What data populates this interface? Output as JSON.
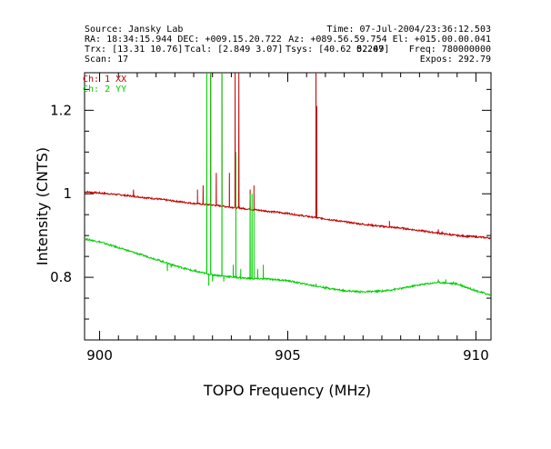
{
  "header": {
    "source": "Source: Jansky Lab",
    "time": "Time: 07-Jul-2004/23:36:12.503",
    "radec": "RA: 18:34:15.944 DEC: +009.15.20.722",
    "azel": "Az: +089.56.59.754 El: +015.00.00.041",
    "trx": "Trx: [13.31 10.76]",
    "tcal": "Tcal: [2.849 3.07]",
    "tsys": "Tsys: [40.62 52.49]",
    "freq": "Freq: 780000000",
    "scan": "Scan: 17",
    "expos": "Expos: 292.79",
    "overlap": "0.207"
  },
  "chart_data": {
    "type": "line",
    "title": "",
    "xlabel": "TOPO Frequency (MHz)",
    "ylabel": "Intensity (CNTS)",
    "xlim": [
      899.6,
      910.4
    ],
    "ylim": [
      0.65,
      1.29
    ],
    "xticks": [
      900,
      905,
      910
    ],
    "xtick_labels": [
      "900",
      "905",
      "910"
    ],
    "yticks": [
      0.8,
      1.0,
      1.2
    ],
    "ytick_labels": [
      "0.8",
      "1",
      "1.2"
    ],
    "legend_position": "top-left inside",
    "series": [
      {
        "name": "Ch: 1 XX",
        "color": "#c00000",
        "baseline": [
          [
            899.6,
            1.005
          ],
          [
            900.5,
            0.998
          ],
          [
            901.5,
            0.988
          ],
          [
            902.5,
            0.977
          ],
          [
            903.0,
            0.973
          ],
          [
            903.5,
            0.968
          ],
          [
            904.0,
            0.963
          ],
          [
            904.5,
            0.958
          ],
          [
            905.0,
            0.953
          ],
          [
            905.5,
            0.946
          ],
          [
            906.0,
            0.94
          ],
          [
            906.5,
            0.933
          ],
          [
            907.0,
            0.927
          ],
          [
            907.5,
            0.922
          ],
          [
            908.0,
            0.918
          ],
          [
            908.5,
            0.912
          ],
          [
            909.0,
            0.906
          ],
          [
            909.5,
            0.9
          ],
          [
            910.0,
            0.897
          ],
          [
            910.4,
            0.894
          ]
        ],
        "spikes": [
          [
            900.9,
            1.01
          ],
          [
            902.6,
            1.01
          ],
          [
            902.75,
            1.02
          ],
          [
            902.95,
            1.29
          ],
          [
            903.1,
            1.05
          ],
          [
            903.25,
            1.29
          ],
          [
            903.45,
            1.05
          ],
          [
            903.6,
            1.29
          ],
          [
            903.7,
            1.29
          ],
          [
            904.0,
            1.01
          ],
          [
            904.1,
            1.02
          ],
          [
            905.75,
            1.29
          ],
          [
            905.77,
            1.21
          ],
          [
            907.7,
            0.935
          ],
          [
            909.0,
            0.915
          ],
          [
            909.1,
            0.91
          ],
          [
            909.3,
            0.905
          ],
          [
            909.6,
            0.9
          ]
        ]
      },
      {
        "name": "Ch: 2 YY",
        "color": "#00cc00",
        "baseline": [
          [
            899.6,
            0.892
          ],
          [
            900.0,
            0.885
          ],
          [
            900.5,
            0.871
          ],
          [
            901.0,
            0.857
          ],
          [
            901.5,
            0.843
          ],
          [
            902.0,
            0.828
          ],
          [
            902.5,
            0.815
          ],
          [
            903.0,
            0.806
          ],
          [
            903.5,
            0.801
          ],
          [
            904.0,
            0.797
          ],
          [
            904.5,
            0.796
          ],
          [
            905.0,
            0.792
          ],
          [
            905.5,
            0.783
          ],
          [
            906.0,
            0.775
          ],
          [
            906.5,
            0.768
          ],
          [
            907.0,
            0.765
          ],
          [
            907.5,
            0.767
          ],
          [
            908.0,
            0.773
          ],
          [
            908.5,
            0.782
          ],
          [
            909.0,
            0.788
          ],
          [
            909.5,
            0.784
          ],
          [
            910.0,
            0.768
          ],
          [
            910.4,
            0.757
          ]
        ],
        "spikes": [
          [
            901.8,
            0.815
          ],
          [
            901.9,
            0.823
          ],
          [
            902.55,
            0.82
          ],
          [
            902.85,
            1.29
          ],
          [
            902.9,
            0.78
          ],
          [
            902.95,
            1.29
          ],
          [
            903.0,
            0.79
          ],
          [
            903.25,
            1.29
          ],
          [
            903.3,
            0.79
          ],
          [
            903.55,
            0.83
          ],
          [
            903.62,
            1.1
          ],
          [
            903.75,
            0.82
          ],
          [
            904.0,
            1.0
          ],
          [
            904.05,
            1.0
          ],
          [
            904.1,
            0.96
          ],
          [
            904.2,
            0.82
          ],
          [
            904.35,
            0.83
          ],
          [
            905.75,
            0.785
          ],
          [
            909.0,
            0.795
          ],
          [
            909.2,
            0.795
          ],
          [
            909.4,
            0.79
          ],
          [
            909.6,
            0.785
          ]
        ]
      }
    ]
  }
}
